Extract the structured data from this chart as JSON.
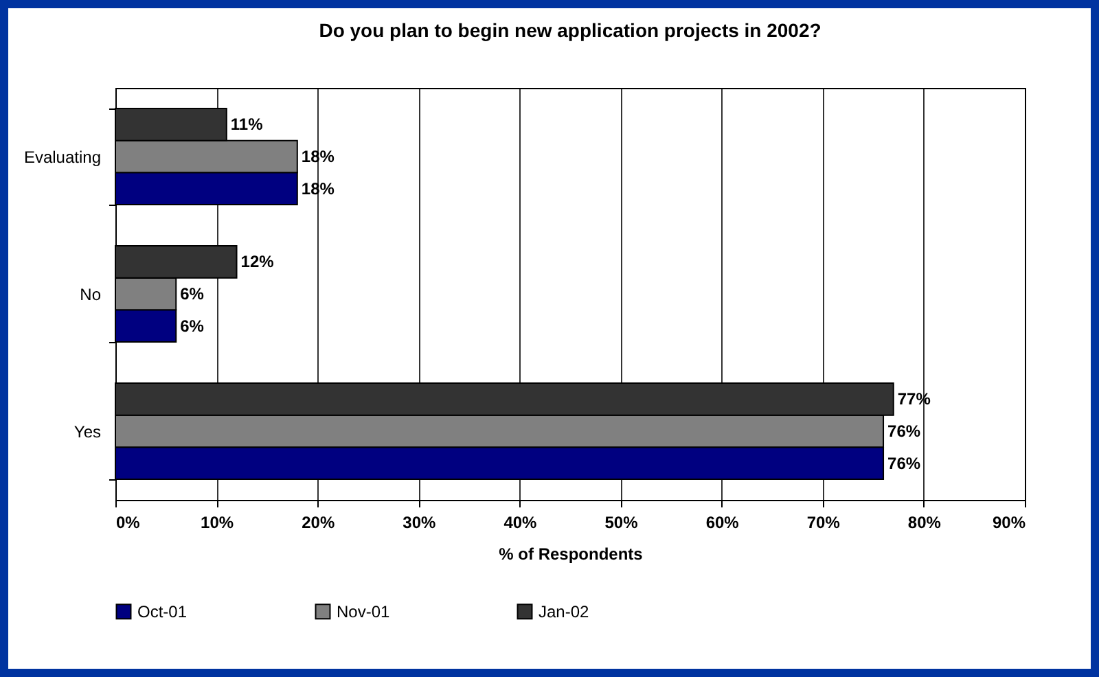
{
  "chart_data": {
    "type": "bar",
    "orientation": "horizontal",
    "title": "Do you plan to begin new application projects in 2002?",
    "xlabel": "% of Respondents",
    "categories": [
      "Evaluating",
      "No",
      "Yes"
    ],
    "series": [
      {
        "name": "Oct-01",
        "color": "#000080",
        "values": [
          18,
          6,
          76
        ],
        "value_labels": [
          "18%",
          "6%",
          "76%"
        ]
      },
      {
        "name": "Nov-01",
        "color": "#808080",
        "values": [
          18,
          6,
          76
        ],
        "value_labels": [
          "18%",
          "6%",
          "76%"
        ]
      },
      {
        "name": "Jan-02",
        "color": "#333333",
        "values": [
          11,
          12,
          77
        ],
        "value_labels": [
          "11%",
          "12%",
          "77%"
        ]
      }
    ],
    "xlim": [
      0,
      90
    ],
    "xticks": [
      {
        "value": 0,
        "label": "0%"
      },
      {
        "value": 10,
        "label": "10%"
      },
      {
        "value": 20,
        "label": "20%"
      },
      {
        "value": 30,
        "label": "30%"
      },
      {
        "value": 40,
        "label": "40%"
      },
      {
        "value": 50,
        "label": "50%"
      },
      {
        "value": 60,
        "label": "60%"
      },
      {
        "value": 70,
        "label": "70%"
      },
      {
        "value": 80,
        "label": "80%"
      },
      {
        "value": 90,
        "label": "90%"
      }
    ],
    "grid": "x",
    "legend": "bottom"
  }
}
